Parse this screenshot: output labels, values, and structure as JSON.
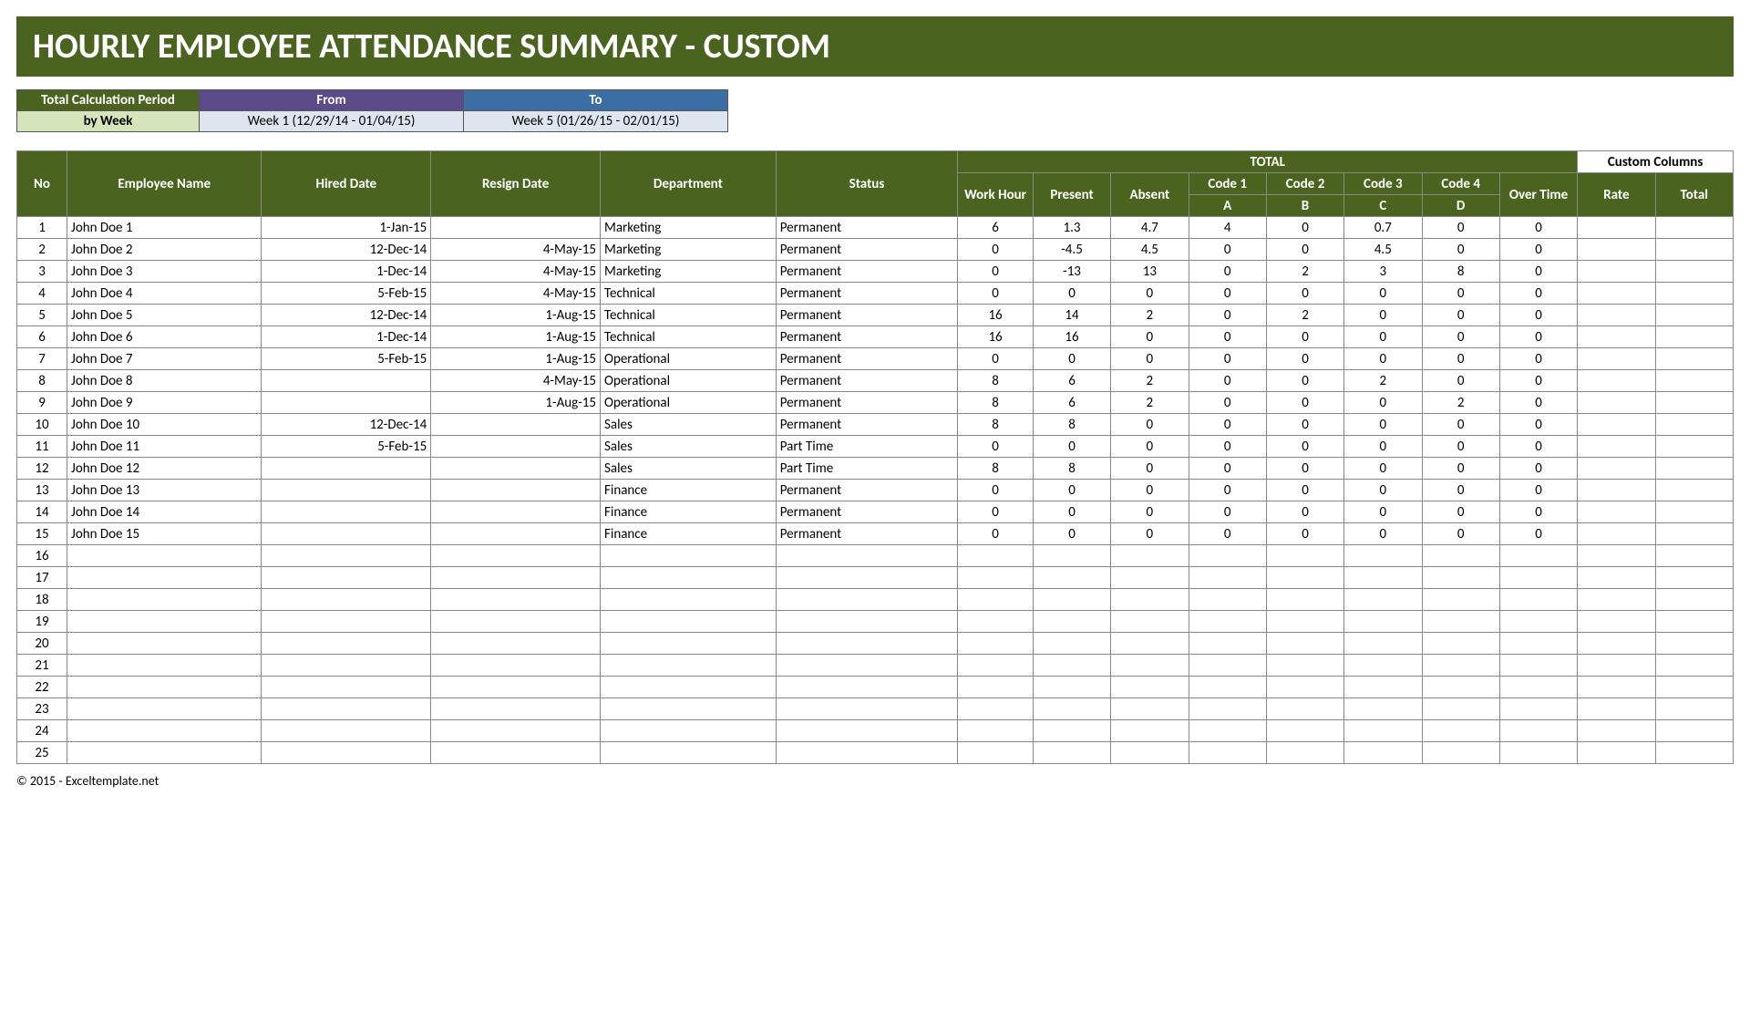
{
  "title": "HOURLY EMPLOYEE ATTENDANCE SUMMARY - CUSTOM",
  "colors": {
    "primary": "#4a6420",
    "purple": "#5b4b8a",
    "blue": "#3a6ea5",
    "lightGreen": "#d6e4bc",
    "lightBlue": "#dde6ef",
    "codeA": "#e07c1b",
    "codeB": "#3a9bbf",
    "codeC": "#5b4b8a",
    "codeD": "#8aa84f"
  },
  "period": {
    "headers": {
      "label": "Total Calculation Period",
      "from": "From",
      "to": "To"
    },
    "values": {
      "by": "by Week",
      "from": "Week 1 (12/29/14 - 01/04/15)",
      "to": "Week 5 (01/26/15 - 02/01/15)"
    }
  },
  "groupHeaders": {
    "total": "TOTAL",
    "custom": "Custom Columns"
  },
  "columns": {
    "no": "No",
    "name": "Employee Name",
    "hired": "Hired Date",
    "resign": "Resign Date",
    "dept": "Department",
    "status": "Status",
    "wh": "Work Hour",
    "present": "Present",
    "absent": "Absent",
    "code1": "Code 1",
    "code2": "Code 2",
    "code3": "Code 3",
    "code4": "Code 4",
    "ot": "Over Time",
    "rate": "Rate",
    "total": "Total"
  },
  "codeLetters": {
    "a": "A",
    "b": "B",
    "c": "C",
    "d": "D"
  },
  "rows": [
    {
      "no": 1,
      "name": "John Doe 1",
      "hired": "1-Jan-15",
      "resign": "",
      "dept": "Marketing",
      "status": "Permanent",
      "wh": "6",
      "pr": "1.3",
      "ab": "4.7",
      "c1": "4",
      "c2": "0",
      "c3": "0.7",
      "c4": "0",
      "ot": "0"
    },
    {
      "no": 2,
      "name": "John Doe 2",
      "hired": "12-Dec-14",
      "resign": "4-May-15",
      "dept": "Marketing",
      "status": "Permanent",
      "wh": "0",
      "pr": "-4.5",
      "ab": "4.5",
      "c1": "0",
      "c2": "0",
      "c3": "4.5",
      "c4": "0",
      "ot": "0"
    },
    {
      "no": 3,
      "name": "John Doe 3",
      "hired": "1-Dec-14",
      "resign": "4-May-15",
      "dept": "Marketing",
      "status": "Permanent",
      "wh": "0",
      "pr": "-13",
      "ab": "13",
      "c1": "0",
      "c2": "2",
      "c3": "3",
      "c4": "8",
      "ot": "0"
    },
    {
      "no": 4,
      "name": "John Doe 4",
      "hired": "5-Feb-15",
      "resign": "4-May-15",
      "dept": "Technical",
      "status": "Permanent",
      "wh": "0",
      "pr": "0",
      "ab": "0",
      "c1": "0",
      "c2": "0",
      "c3": "0",
      "c4": "0",
      "ot": "0"
    },
    {
      "no": 5,
      "name": "John Doe 5",
      "hired": "12-Dec-14",
      "resign": "1-Aug-15",
      "dept": "Technical",
      "status": "Permanent",
      "wh": "16",
      "pr": "14",
      "ab": "2",
      "c1": "0",
      "c2": "2",
      "c3": "0",
      "c4": "0",
      "ot": "0"
    },
    {
      "no": 6,
      "name": "John Doe 6",
      "hired": "1-Dec-14",
      "resign": "1-Aug-15",
      "dept": "Technical",
      "status": "Permanent",
      "wh": "16",
      "pr": "16",
      "ab": "0",
      "c1": "0",
      "c2": "0",
      "c3": "0",
      "c4": "0",
      "ot": "0"
    },
    {
      "no": 7,
      "name": "John Doe 7",
      "hired": "5-Feb-15",
      "resign": "1-Aug-15",
      "dept": "Operational",
      "status": "Permanent",
      "wh": "0",
      "pr": "0",
      "ab": "0",
      "c1": "0",
      "c2": "0",
      "c3": "0",
      "c4": "0",
      "ot": "0"
    },
    {
      "no": 8,
      "name": "John Doe 8",
      "hired": "",
      "resign": "4-May-15",
      "dept": "Operational",
      "status": "Permanent",
      "wh": "8",
      "pr": "6",
      "ab": "2",
      "c1": "0",
      "c2": "0",
      "c3": "2",
      "c4": "0",
      "ot": "0"
    },
    {
      "no": 9,
      "name": "John Doe 9",
      "hired": "",
      "resign": "1-Aug-15",
      "dept": "Operational",
      "status": "Permanent",
      "wh": "8",
      "pr": "6",
      "ab": "2",
      "c1": "0",
      "c2": "0",
      "c3": "0",
      "c4": "2",
      "ot": "0"
    },
    {
      "no": 10,
      "name": "John Doe 10",
      "hired": "12-Dec-14",
      "resign": "",
      "dept": "Sales",
      "status": "Permanent",
      "wh": "8",
      "pr": "8",
      "ab": "0",
      "c1": "0",
      "c2": "0",
      "c3": "0",
      "c4": "0",
      "ot": "0"
    },
    {
      "no": 11,
      "name": "John Doe 11",
      "hired": "5-Feb-15",
      "resign": "",
      "dept": "Sales",
      "status": "Part Time",
      "wh": "0",
      "pr": "0",
      "ab": "0",
      "c1": "0",
      "c2": "0",
      "c3": "0",
      "c4": "0",
      "ot": "0"
    },
    {
      "no": 12,
      "name": "John Doe 12",
      "hired": "",
      "resign": "",
      "dept": "Sales",
      "status": "Part Time",
      "wh": "8",
      "pr": "8",
      "ab": "0",
      "c1": "0",
      "c2": "0",
      "c3": "0",
      "c4": "0",
      "ot": "0"
    },
    {
      "no": 13,
      "name": "John Doe 13",
      "hired": "",
      "resign": "",
      "dept": "Finance",
      "status": "Permanent",
      "wh": "0",
      "pr": "0",
      "ab": "0",
      "c1": "0",
      "c2": "0",
      "c3": "0",
      "c4": "0",
      "ot": "0"
    },
    {
      "no": 14,
      "name": "John Doe 14",
      "hired": "",
      "resign": "",
      "dept": "Finance",
      "status": "Permanent",
      "wh": "0",
      "pr": "0",
      "ab": "0",
      "c1": "0",
      "c2": "0",
      "c3": "0",
      "c4": "0",
      "ot": "0"
    },
    {
      "no": 15,
      "name": "John Doe 15",
      "hired": "",
      "resign": "",
      "dept": "Finance",
      "status": "Permanent",
      "wh": "0",
      "pr": "0",
      "ab": "0",
      "c1": "0",
      "c2": "0",
      "c3": "0",
      "c4": "0",
      "ot": "0"
    }
  ],
  "emptyRowStart": 16,
  "emptyRowEnd": 25,
  "footer": "© 2015 - Exceltemplate.net"
}
